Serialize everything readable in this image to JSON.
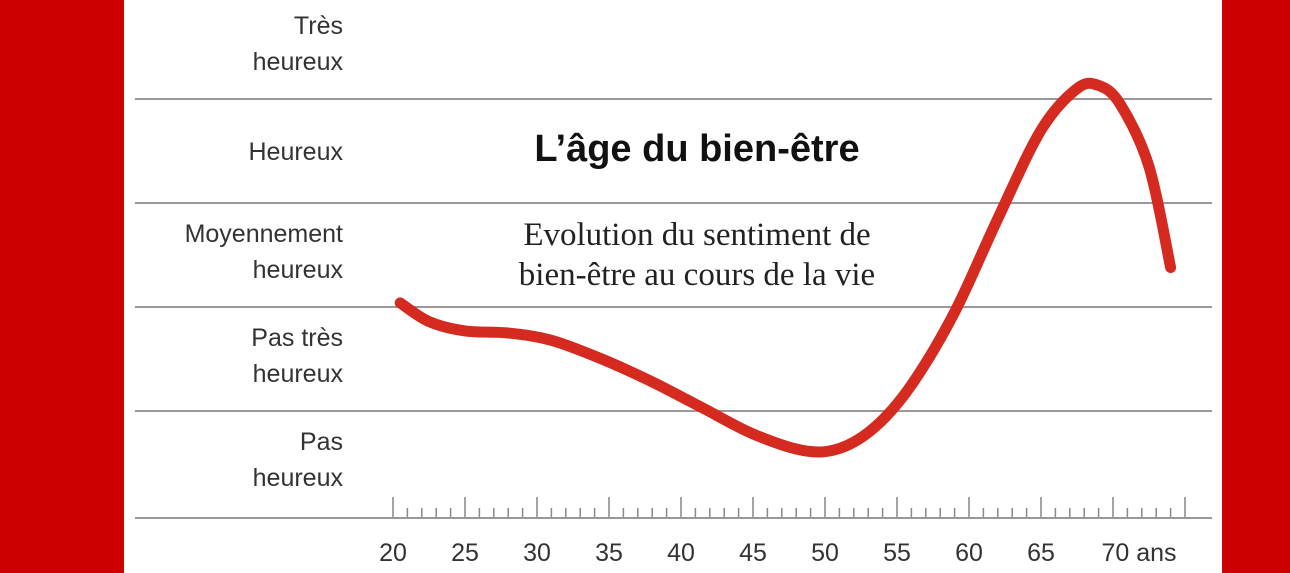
{
  "colors": {
    "frame": "#cc0000",
    "curve": "#d42a1f",
    "grid": "#999999"
  },
  "chart_data": {
    "type": "line",
    "title": "L’âge du bien-être",
    "subtitle": [
      "Evolution du sentiment de",
      "bien-être au cours de la vie"
    ],
    "xlabel": "",
    "ylabel": "",
    "x_ticks": [
      "20",
      "25",
      "30",
      "35",
      "40",
      "45",
      "50",
      "55",
      "60",
      "65",
      "70 ans"
    ],
    "x_tick_values": [
      20,
      25,
      30,
      35,
      40,
      45,
      50,
      55,
      60,
      65,
      70
    ],
    "xlim": [
      20,
      75
    ],
    "y_categories": [
      {
        "level": 5,
        "label": [
          "Très",
          "heureux"
        ]
      },
      {
        "level": 4,
        "label": [
          "Heureux"
        ]
      },
      {
        "level": 3,
        "label": [
          "Moyennement",
          "heureux"
        ]
      },
      {
        "level": 2,
        "label": [
          "Pas très",
          "heureux"
        ]
      },
      {
        "level": 1,
        "label": [
          "Pas",
          "heureux"
        ]
      }
    ],
    "grid": true,
    "series": [
      {
        "x": [
          20.5,
          22.5,
          25,
          28,
          31,
          34.5,
          38,
          41.5,
          45,
          48.5,
          51,
          53.5,
          56,
          59,
          62,
          65,
          67.5,
          69,
          70.5,
          72.5,
          74
        ],
        "y": [
          2.54,
          2.36,
          2.27,
          2.25,
          2.18,
          2.0,
          1.78,
          1.53,
          1.28,
          1.12,
          1.14,
          1.35,
          1.75,
          2.45,
          3.35,
          4.2,
          4.6,
          4.63,
          4.45,
          3.85,
          2.88
        ]
      }
    ]
  }
}
